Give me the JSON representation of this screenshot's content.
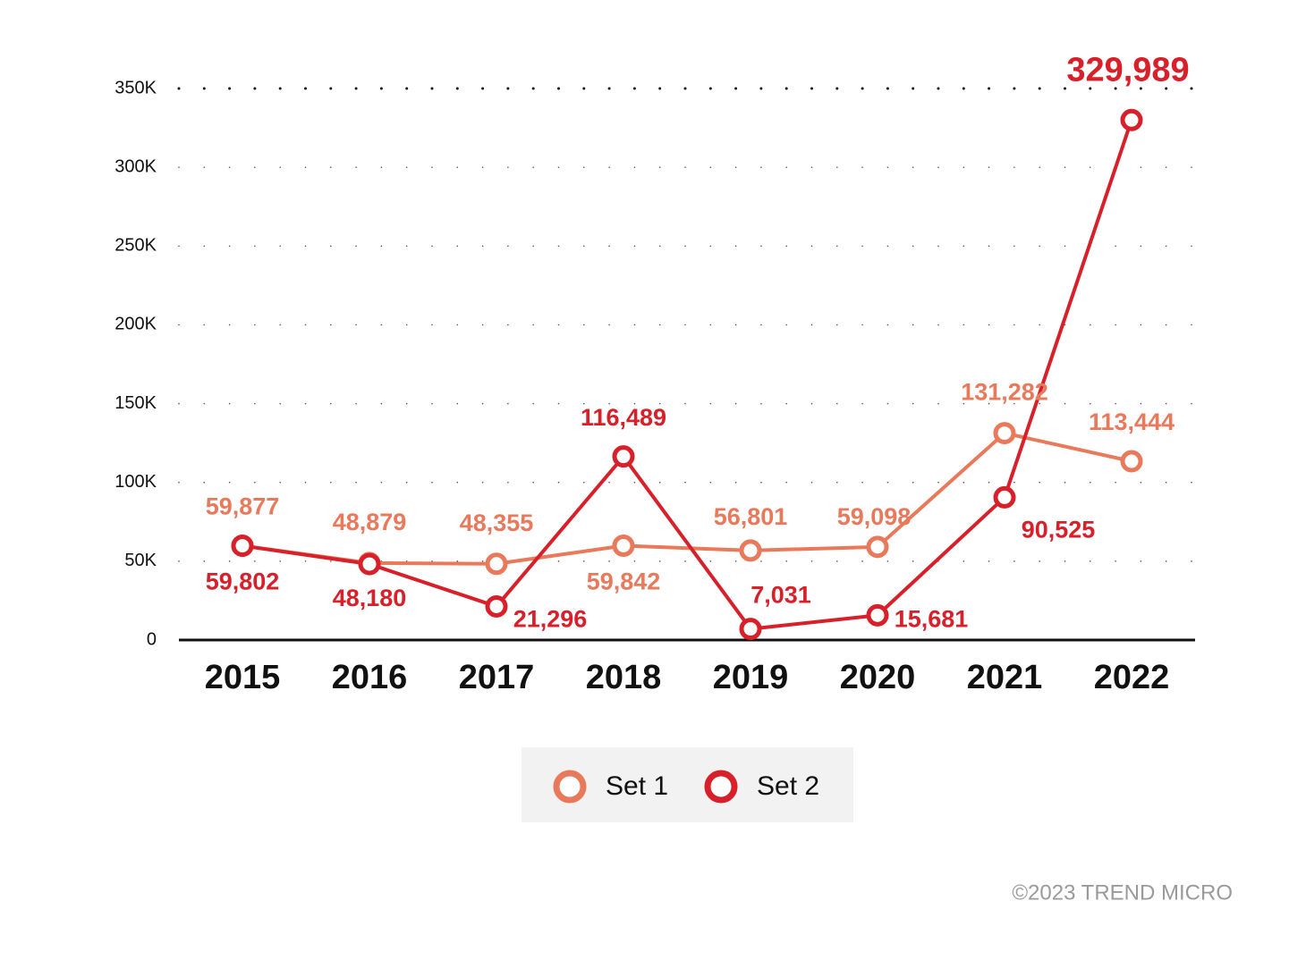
{
  "chart_data": {
    "type": "line",
    "categories": [
      "2015",
      "2016",
      "2017",
      "2018",
      "2019",
      "2020",
      "2021",
      "2022"
    ],
    "series": [
      {
        "name": "Set 1",
        "color": "#e8795a",
        "values": [
          59877,
          48879,
          48355,
          59842,
          56801,
          59098,
          131282,
          113444
        ],
        "value_labels": [
          "59,877",
          "48,879",
          "48,355",
          "59,842",
          "56,801",
          "59,098",
          "131,282",
          "113,444"
        ]
      },
      {
        "name": "Set 2",
        "color": "#d7202a",
        "values": [
          59802,
          48180,
          21296,
          116489,
          7031,
          15681,
          90525,
          329989
        ],
        "value_labels": [
          "59,802",
          "48,180",
          "21,296",
          "116,489",
          "7,031",
          "15,681",
          "90,525",
          "329,989"
        ]
      }
    ],
    "ylim": [
      0,
      350000
    ],
    "yticks": [
      0,
      {
        "value": 50000,
        "label": "50K"
      },
      {
        "value": 100000,
        "label": "100K"
      },
      {
        "value": 150000,
        "label": "150K"
      },
      {
        "value": 200000,
        "label": "200K"
      },
      {
        "value": 250000,
        "label": "250K"
      },
      {
        "value": 300000,
        "label": "300K"
      },
      {
        "value": 350000,
        "label": "350K"
      }
    ],
    "grid": true,
    "legend": "bottom",
    "source": "©2023 TREND MICRO"
  }
}
